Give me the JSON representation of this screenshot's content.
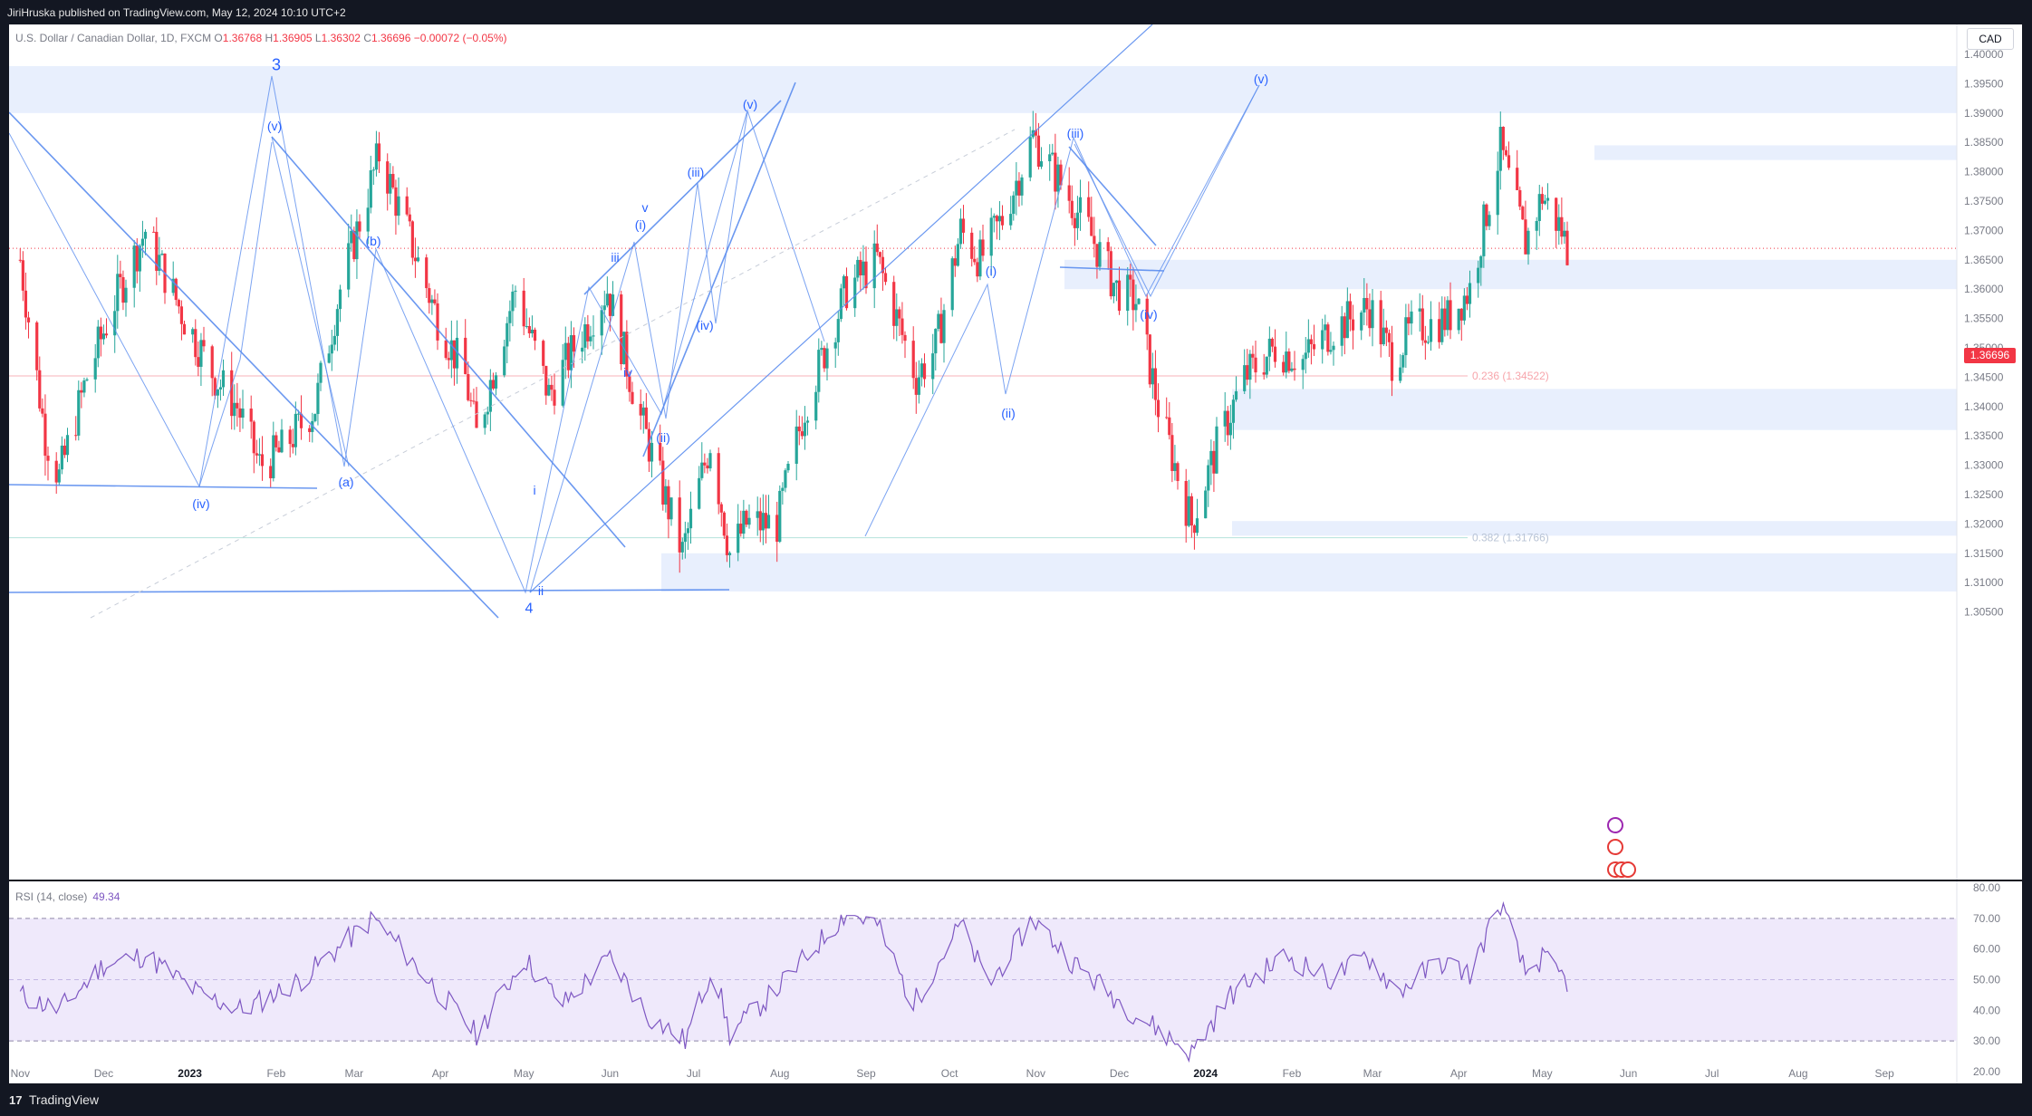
{
  "header": {
    "published": "JiriHruska published on TradingView.com, May 12, 2024 10:10 UTC+2"
  },
  "legend": {
    "symbol": "U.S. Dollar / Canadian Dollar, 1D, FXCM",
    "o_label": "O",
    "o": "1.36768",
    "h_label": "H",
    "h": "1.36905",
    "l_label": "L",
    "l": "1.36302",
    "c_label": "C",
    "c": "1.36696",
    "change": "−0.00072 (−0.05%)"
  },
  "currency": "CAD",
  "last_price": "1.36696",
  "rsi": {
    "label": "RSI (14, close)",
    "value": "49.34"
  },
  "footer": {
    "logo": "17",
    "brand": "TradingView"
  },
  "colors": {
    "up": "#26a69a",
    "down": "#f23645",
    "wave": "#5b8def",
    "zone": "#e8effd",
    "rsi_line": "#7e57c2",
    "rsi_band": "#efe9fb"
  },
  "chart_data": {
    "type": "candlestick",
    "instrument": "U.S. Dollar / Canadian Dollar",
    "timeframe": "1D",
    "ylim": [
      1.305,
      1.405
    ],
    "y_ticks": [
      "1.40000",
      "1.39500",
      "1.39000",
      "1.38500",
      "1.38000",
      "1.37500",
      "1.37000",
      "1.36500",
      "1.36000",
      "1.35500",
      "1.35000",
      "1.34500",
      "1.34000",
      "1.33500",
      "1.33000",
      "1.32500",
      "1.32000",
      "1.31500",
      "1.31000",
      "1.30500"
    ],
    "x_ticks": [
      "Nov",
      "Dec",
      "2023",
      "Feb",
      "Mar",
      "Apr",
      "May",
      "Jun",
      "Jul",
      "Aug",
      "Sep",
      "Oct",
      "Nov",
      "Dec",
      "2024",
      "Feb",
      "Mar",
      "Apr",
      "May",
      "Jun",
      "Jul",
      "Aug",
      "Sep"
    ],
    "close_path": [
      [
        "2022-11-01",
        1.365
      ],
      [
        "2022-11-10",
        1.335
      ],
      [
        "2022-11-15",
        1.328
      ],
      [
        "2022-11-25",
        1.345
      ],
      [
        "2022-12-05",
        1.358
      ],
      [
        "2022-12-16",
        1.37
      ],
      [
        "2022-12-30",
        1.355
      ],
      [
        "2023-01-10",
        1.345
      ],
      [
        "2023-01-18",
        1.34
      ],
      [
        "2023-01-26",
        1.33
      ],
      [
        "2023-02-02",
        1.332
      ],
      [
        "2023-02-15",
        1.34
      ],
      [
        "2023-02-24",
        1.36
      ],
      [
        "2023-03-10",
        1.383
      ],
      [
        "2023-03-20",
        1.37
      ],
      [
        "2023-03-31",
        1.355
      ],
      [
        "2023-04-10",
        1.345
      ],
      [
        "2023-04-14",
        1.335
      ],
      [
        "2023-04-21",
        1.348
      ],
      [
        "2023-04-28",
        1.36
      ],
      [
        "2023-05-10",
        1.342
      ],
      [
        "2023-05-19",
        1.35
      ],
      [
        "2023-05-31",
        1.36
      ],
      [
        "2023-06-12",
        1.338
      ],
      [
        "2023-06-27",
        1.315
      ],
      [
        "2023-07-07",
        1.334
      ],
      [
        "2023-07-14",
        1.315
      ],
      [
        "2023-07-20",
        1.32
      ],
      [
        "2023-07-31",
        1.32
      ],
      [
        "2023-08-10",
        1.34
      ],
      [
        "2023-08-25",
        1.36
      ],
      [
        "2023-09-05",
        1.365
      ],
      [
        "2023-09-12",
        1.355
      ],
      [
        "2023-09-19",
        1.345
      ],
      [
        "2023-09-26",
        1.35
      ],
      [
        "2023-10-05",
        1.37
      ],
      [
        "2023-10-12",
        1.365
      ],
      [
        "2023-10-20",
        1.372
      ],
      [
        "2023-10-31",
        1.386
      ],
      [
        "2023-11-10",
        1.378
      ],
      [
        "2023-11-20",
        1.37
      ],
      [
        "2023-11-30",
        1.36
      ],
      [
        "2023-12-07",
        1.358
      ],
      [
        "2023-12-15",
        1.34
      ],
      [
        "2023-12-27",
        1.32
      ],
      [
        "2024-01-05",
        1.333
      ],
      [
        "2024-01-15",
        1.345
      ],
      [
        "2024-01-26",
        1.35
      ],
      [
        "2024-02-05",
        1.348
      ],
      [
        "2024-02-15",
        1.353
      ],
      [
        "2024-02-29",
        1.357
      ],
      [
        "2024-03-08",
        1.348
      ],
      [
        "2024-03-15",
        1.353
      ],
      [
        "2024-03-28",
        1.355
      ],
      [
        "2024-04-05",
        1.36
      ],
      [
        "2024-04-16",
        1.384
      ],
      [
        "2024-04-25",
        1.368
      ],
      [
        "2024-05-01",
        1.376
      ],
      [
        "2024-05-08",
        1.37
      ],
      [
        "2024-05-10",
        1.36696
      ]
    ],
    "rsi_ylim": [
      20,
      80
    ],
    "rsi_ticks": [
      "80.00",
      "70.00",
      "60.00",
      "50.00",
      "40.00",
      "30.00",
      "20.00"
    ],
    "rsi_levels": {
      "upper": 70,
      "middle": 50,
      "lower": 30
    },
    "rsi_path": [
      [
        "2022-11-01",
        45
      ],
      [
        "2022-11-15",
        40
      ],
      [
        "2022-12-01",
        55
      ],
      [
        "2022-12-16",
        58
      ],
      [
        "2023-01-05",
        45
      ],
      [
        "2023-01-20",
        40
      ],
      [
        "2023-02-10",
        50
      ],
      [
        "2023-03-08",
        70
      ],
      [
        "2023-03-20",
        58
      ],
      [
        "2023-04-14",
        32
      ],
      [
        "2023-05-01",
        57
      ],
      [
        "2023-05-15",
        42
      ],
      [
        "2023-06-01",
        57
      ],
      [
        "2023-06-15",
        38
      ],
      [
        "2023-06-28",
        30
      ],
      [
        "2023-07-08",
        55
      ],
      [
        "2023-07-14",
        32
      ],
      [
        "2023-08-01",
        48
      ],
      [
        "2023-08-25",
        72
      ],
      [
        "2023-09-05",
        68
      ],
      [
        "2023-09-18",
        42
      ],
      [
        "2023-10-05",
        68
      ],
      [
        "2023-10-15",
        48
      ],
      [
        "2023-10-31",
        70
      ],
      [
        "2023-11-15",
        55
      ],
      [
        "2023-12-05",
        40
      ],
      [
        "2023-12-27",
        26
      ],
      [
        "2024-01-10",
        45
      ],
      [
        "2024-01-30",
        58
      ],
      [
        "2024-02-15",
        50
      ],
      [
        "2024-02-28",
        58
      ],
      [
        "2024-03-10",
        46
      ],
      [
        "2024-03-25",
        56
      ],
      [
        "2024-04-05",
        52
      ],
      [
        "2024-04-16",
        75
      ],
      [
        "2024-04-25",
        52
      ],
      [
        "2024-05-01",
        57
      ],
      [
        "2024-05-10",
        49.34
      ]
    ],
    "fib_levels": [
      {
        "label": "0.236 (1.34522)",
        "value": 1.34522
      },
      {
        "label": "0.382 (1.31766)",
        "value": 1.31766
      }
    ],
    "zones": [
      {
        "from": 1.39,
        "to": 1.398
      },
      {
        "from": 1.382,
        "to": 1.3845
      },
      {
        "from": 1.36,
        "to": 1.365
      },
      {
        "from": 1.336,
        "to": 1.343
      },
      {
        "from": 1.318,
        "to": 1.3205
      },
      {
        "from": 1.3085,
        "to": 1.315
      }
    ],
    "wave_labels": [
      "3",
      "(v)",
      "(iv)",
      "(a)",
      "(b)",
      "4",
      "i",
      "ii",
      "iii",
      "iv",
      "v",
      "(i)",
      "(ii)",
      "(iii)",
      "(iv)",
      "(v)",
      "(i)",
      "(ii)",
      "(iii)",
      "(iv)",
      "(v)"
    ]
  }
}
